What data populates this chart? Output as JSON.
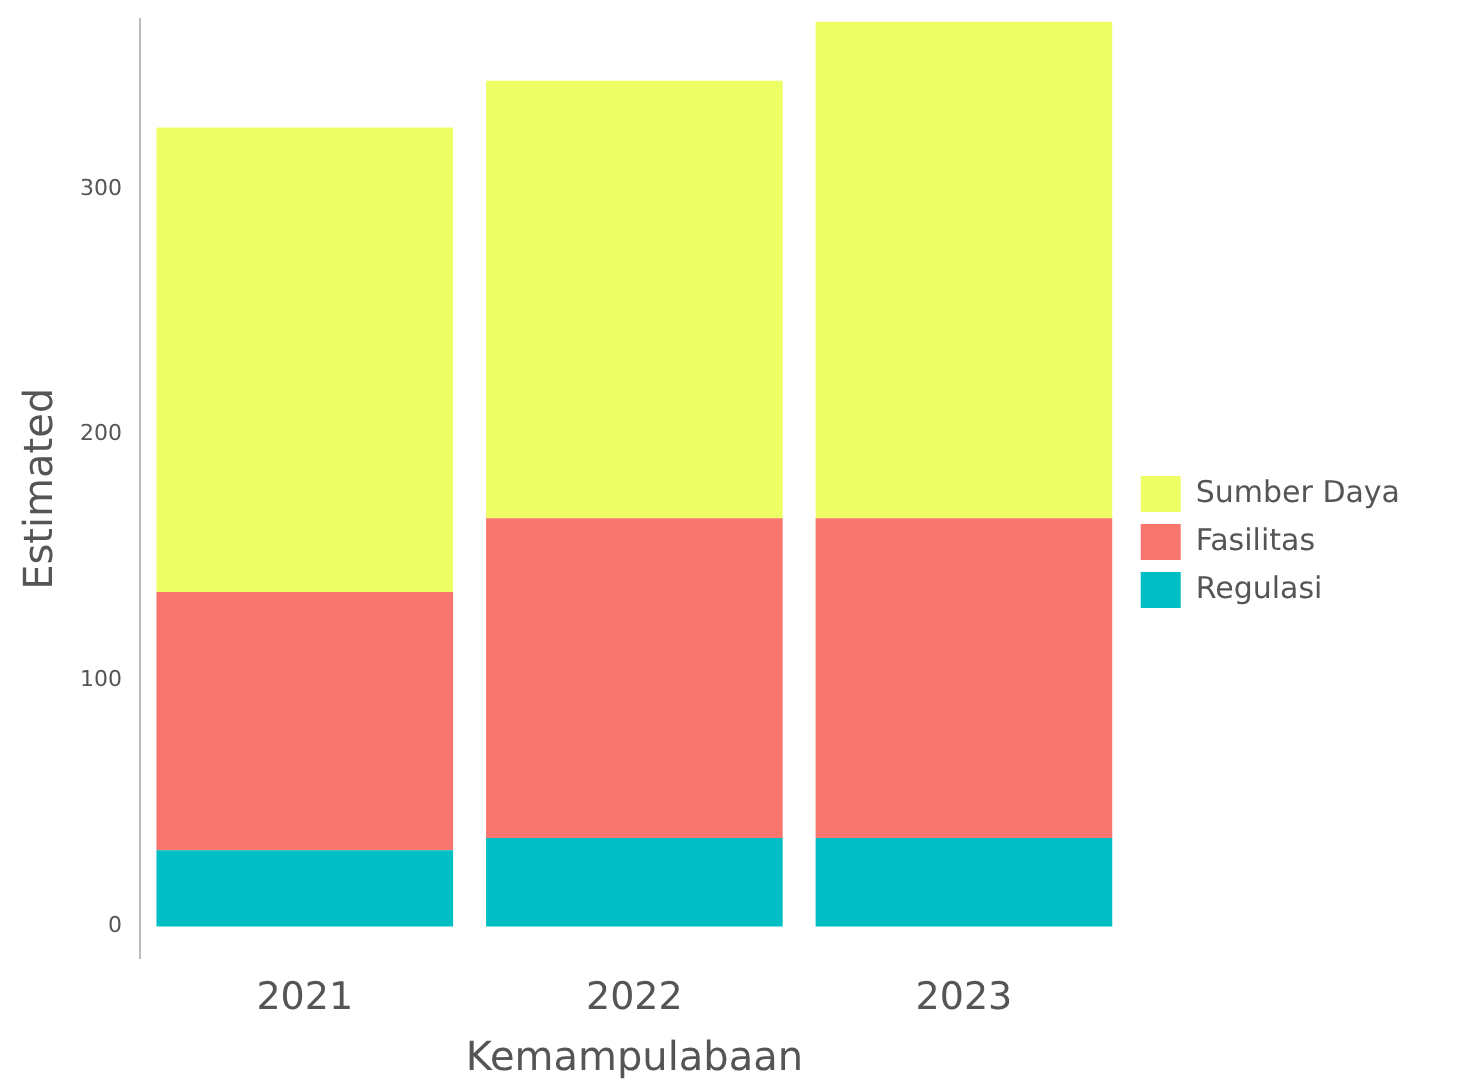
{
  "chart_data": {
    "type": "bar",
    "xlabel": "Kemampulabaan",
    "ylabel": "Estimated",
    "categories": [
      "2021",
      "2022",
      "2023"
    ],
    "stacked": true,
    "series": [
      {
        "name": "Regulasi",
        "color": "#00bfc4",
        "values": [
          31,
          36,
          36
        ]
      },
      {
        "name": "Fasilitas",
        "color": "#f8766d",
        "values": [
          105,
          130,
          130
        ]
      },
      {
        "name": "Sumber Daya",
        "color": "#eeff66",
        "values": [
          189,
          178,
          202
        ]
      }
    ],
    "ylim": [
      -13,
      369
    ],
    "yticks": [
      0,
      100,
      200,
      300
    ],
    "grid": false,
    "legend": "right"
  }
}
